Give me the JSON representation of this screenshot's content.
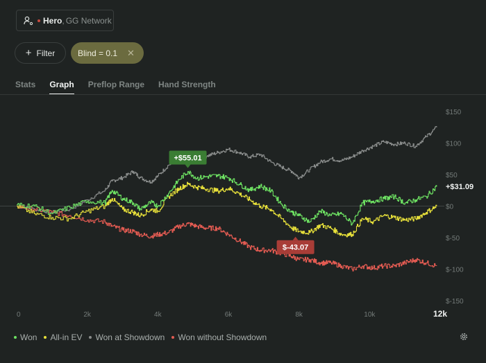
{
  "player": {
    "name": "Hero",
    "network": "GG Network",
    "separator": ",",
    "icon": "user-settings-icon"
  },
  "filters": {
    "filter_label": "Filter",
    "filter_icon": "plus-icon",
    "active_chip": {
      "label": "Blind = 0.1",
      "close_icon": "close-icon"
    }
  },
  "tabs": [
    {
      "label": "Stats",
      "active": false
    },
    {
      "label": "Graph",
      "active": true
    },
    {
      "label": "Preflop Range",
      "active": false
    },
    {
      "label": "Hand Strength",
      "active": false
    }
  ],
  "chart_data": {
    "type": "line",
    "x_ticks": [
      "0",
      "2k",
      "4k",
      "6k",
      "8k",
      "10k",
      "12k"
    ],
    "x_tick_values": [
      0,
      2000,
      4000,
      6000,
      8000,
      10000,
      12000
    ],
    "xlim": [
      0,
      12000
    ],
    "y_ticks": [
      "$150",
      "$100",
      "$50",
      "$0",
      "$-50",
      "$-100",
      "$-150"
    ],
    "y_tick_values": [
      150,
      100,
      50,
      0,
      -50,
      -100,
      -150
    ],
    "ylim": [
      -150,
      150
    ],
    "grid": false,
    "end_label": "+$31.09",
    "annotations": [
      {
        "label": "+$55.01",
        "x": 4850,
        "y": 55.01,
        "color": "#3a7d33"
      },
      {
        "label": "$-43.07",
        "x": 7900,
        "y": -43.07,
        "color": "#a83d37"
      }
    ],
    "series": [
      {
        "name": "Won",
        "color": "#6de062",
        "x": [
          0,
          500,
          1000,
          1500,
          2000,
          2500,
          2700,
          3000,
          3300,
          3500,
          3800,
          4000,
          4300,
          4600,
          4850,
          5100,
          5400,
          5700,
          6000,
          6300,
          6600,
          6900,
          7200,
          7500,
          7800,
          8000,
          8300,
          8600,
          8900,
          9200,
          9500,
          9800,
          10100,
          10400,
          10700,
          11000,
          11300,
          11600,
          11900
        ],
        "y": [
          2,
          0,
          -12,
          -2,
          8,
          5,
          25,
          12,
          5,
          -5,
          6,
          0,
          20,
          42,
          55,
          44,
          47,
          48,
          45,
          35,
          25,
          32,
          24,
          3,
          -10,
          -15,
          -25,
          -8,
          -15,
          -12,
          -28,
          5,
          8,
          12,
          15,
          5,
          10,
          15,
          31.09
        ]
      },
      {
        "name": "All-in EV",
        "color": "#e6df3a",
        "x": [
          0,
          500,
          1000,
          1500,
          2000,
          2500,
          2700,
          3000,
          3300,
          3500,
          3800,
          4000,
          4300,
          4600,
          4850,
          5100,
          5400,
          5700,
          6000,
          6300,
          6600,
          6900,
          7200,
          7500,
          7800,
          8000,
          8300,
          8600,
          8900,
          9200,
          9500,
          9800,
          10100,
          10400,
          10700,
          11000,
          11300,
          11600,
          11900
        ],
        "y": [
          0,
          -12,
          -18,
          -20,
          -8,
          0,
          12,
          -5,
          -10,
          -15,
          -5,
          -8,
          15,
          28,
          35,
          30,
          27,
          24,
          28,
          20,
          10,
          0,
          -5,
          -20,
          -35,
          -40,
          -42,
          -30,
          -35,
          -45,
          -45,
          -20,
          -25,
          -15,
          -18,
          -22,
          -20,
          -10,
          0
        ]
      },
      {
        "name": "Won at Showdown",
        "color": "#8a8d8c",
        "x": [
          0,
          500,
          1000,
          1500,
          2000,
          2500,
          2700,
          3000,
          3300,
          3500,
          3800,
          4000,
          4300,
          4600,
          4850,
          5100,
          5400,
          5700,
          6000,
          6300,
          6600,
          6900,
          7200,
          7500,
          7800,
          8000,
          8300,
          8600,
          8900,
          9200,
          9500,
          9800,
          10100,
          10400,
          10700,
          11000,
          11300,
          11600,
          11900
        ],
        "y": [
          0,
          -5,
          -10,
          -5,
          10,
          25,
          40,
          45,
          55,
          45,
          38,
          48,
          65,
          75,
          78,
          72,
          80,
          85,
          90,
          85,
          78,
          82,
          70,
          62,
          55,
          45,
          58,
          70,
          75,
          72,
          78,
          88,
          95,
          102,
          98,
          100,
          95,
          110,
          125
        ]
      },
      {
        "name": "Won without Showdown",
        "color": "#e25b52",
        "x": [
          0,
          500,
          1000,
          1500,
          2000,
          2500,
          2700,
          3000,
          3300,
          3500,
          3800,
          4000,
          4300,
          4600,
          4850,
          5100,
          5400,
          5700,
          6000,
          6300,
          6600,
          6900,
          7200,
          7500,
          7800,
          8000,
          8300,
          8600,
          8900,
          9200,
          9500,
          9800,
          10100,
          10400,
          10700,
          11000,
          11300,
          11600,
          11900
        ],
        "y": [
          0,
          -5,
          -10,
          -15,
          -22,
          -25,
          -32,
          -38,
          -40,
          -45,
          -48,
          -45,
          -42,
          -32,
          -28,
          -32,
          -35,
          -35,
          -45,
          -55,
          -65,
          -70,
          -70,
          -75,
          -80,
          -85,
          -85,
          -90,
          -90,
          -95,
          -100,
          -95,
          -98,
          -95,
          -95,
          -90,
          -85,
          -90,
          -95
        ]
      }
    ]
  },
  "legend": [
    {
      "label": "Won",
      "color": "#6de062"
    },
    {
      "label": "All-in EV",
      "color": "#e6df3a"
    },
    {
      "label": "Won at Showdown",
      "color": "#8a8d8c"
    },
    {
      "label": "Won without Showdown",
      "color": "#e25b52"
    }
  ],
  "settings_icon": "gear-icon"
}
